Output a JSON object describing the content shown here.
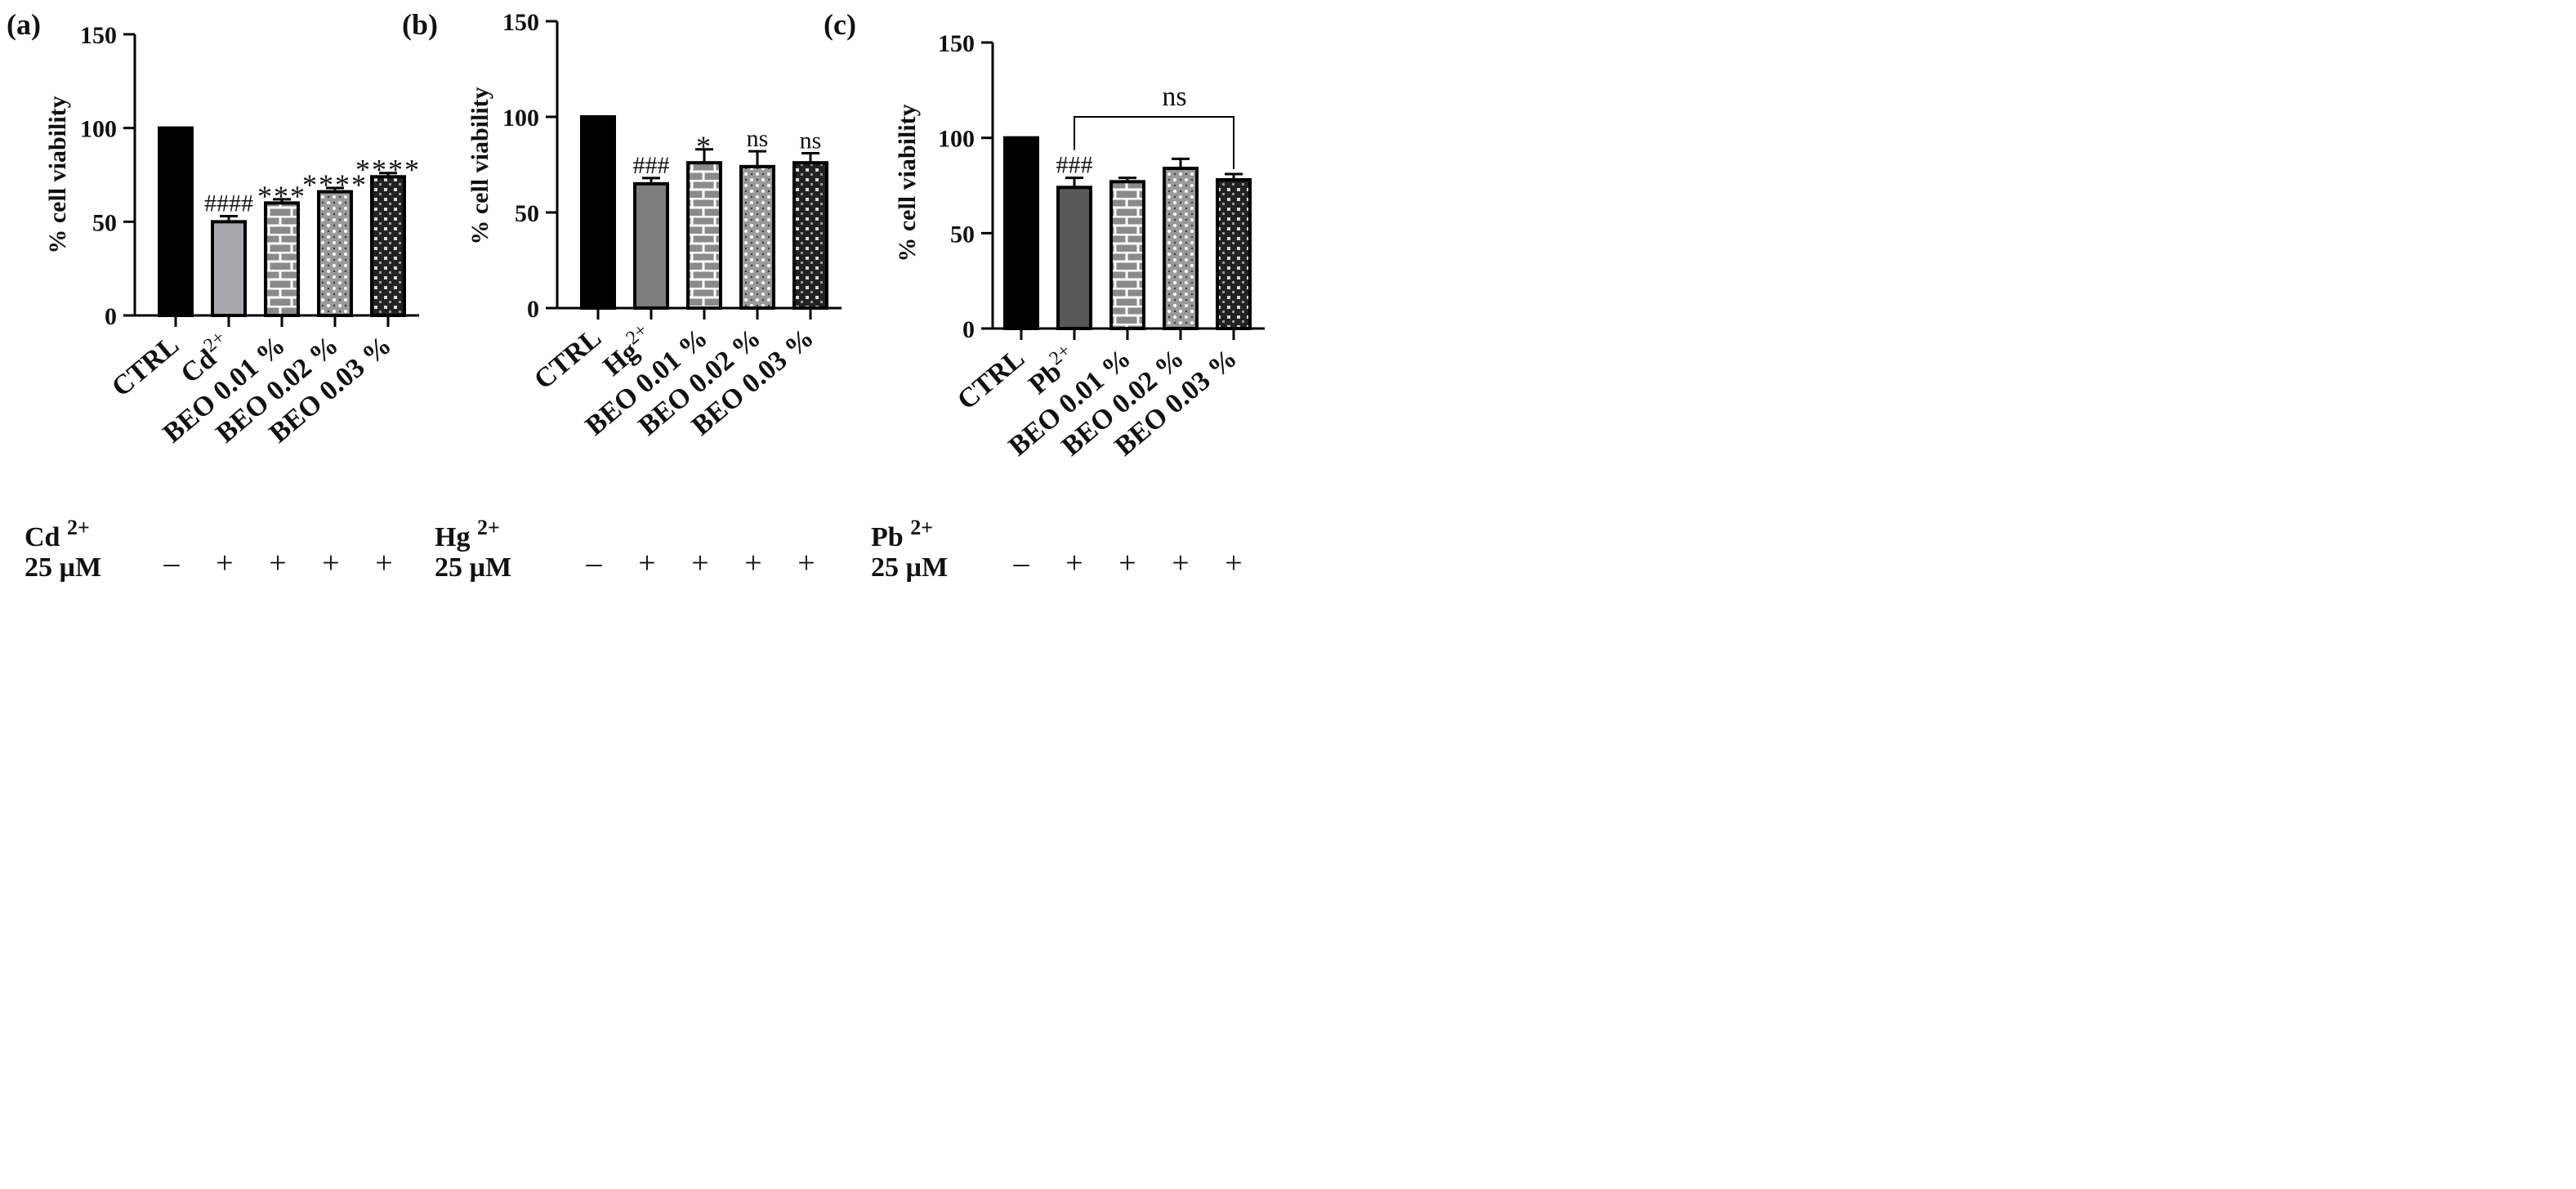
{
  "figure": {
    "panels": [
      {
        "label": "(a)",
        "ion": "Cd",
        "ion_charge": "2+",
        "row_title_ion": "Cd",
        "row_title_charge": "2+",
        "row_title_conc": "25 µM",
        "treatment_signs": [
          "–",
          "+",
          "+",
          "+",
          "+"
        ],
        "annotations": [
          "",
          "####",
          "***",
          "****",
          "****"
        ],
        "ns_bracket": null
      },
      {
        "label": "(b)",
        "ion": "Hg",
        "ion_charge": "2+",
        "row_title_ion": "Hg",
        "row_title_charge": "2+",
        "row_title_conc": "25 µM",
        "treatment_signs": [
          "–",
          "+",
          "+",
          "+",
          "+"
        ],
        "annotations": [
          "",
          "###",
          "*",
          "ns",
          "ns"
        ],
        "ns_bracket": null
      },
      {
        "label": "(c)",
        "ion": "Pb",
        "ion_charge": "2+",
        "row_title_ion": "Pb",
        "row_title_charge": "2+",
        "row_title_conc": "25 µM",
        "treatment_signs": [
          "–",
          "+",
          "+",
          "+",
          "+"
        ],
        "annotations": [
          "",
          "###",
          "",
          "",
          ""
        ],
        "ns_bracket": {
          "label": "ns",
          "from_index": 1,
          "to_index": 4
        }
      }
    ]
  },
  "chart_data": [
    {
      "type": "bar",
      "title": "",
      "xlabel": "",
      "ylabel": "% cell viability",
      "ylim": [
        0,
        150
      ],
      "yticks": [
        0,
        50,
        100,
        150
      ],
      "categories": [
        "CTRL",
        "Cd2+",
        "BEO 0.01 %",
        "BEO 0.02 %",
        "BEO 0.03 %"
      ],
      "values": [
        100,
        50,
        60,
        66,
        74
      ],
      "errors": [
        0,
        3,
        2,
        2,
        2
      ],
      "fills": [
        "#000000",
        "#a7a7ad",
        "pattern-brick",
        "pattern-dots",
        "pattern-grid"
      ]
    },
    {
      "type": "bar",
      "title": "",
      "xlabel": "",
      "ylabel": "% cell viability",
      "ylim": [
        0,
        150
      ],
      "yticks": [
        0,
        50,
        100,
        150
      ],
      "categories": [
        "CTRL",
        "Hg2+",
        "BEO 0.01 %",
        "BEO 0.02 %",
        "BEO 0.03 %"
      ],
      "values": [
        100,
        65,
        76,
        74,
        76
      ],
      "errors": [
        0,
        3,
        7,
        8,
        5
      ],
      "fills": [
        "#000000",
        "#7d7d7d",
        "pattern-brick",
        "pattern-dots",
        "pattern-grid"
      ]
    },
    {
      "type": "bar",
      "title": "",
      "xlabel": "",
      "ylabel": "%  cell viability",
      "ylim": [
        0,
        150
      ],
      "yticks": [
        0,
        50,
        100,
        150
      ],
      "categories": [
        "CTRL",
        "Pb2+",
        "BEO 0.01 %",
        "BEO 0.02 %",
        "BEO 0.03 %"
      ],
      "values": [
        100,
        74,
        77,
        84,
        78
      ],
      "errors": [
        0,
        5,
        2,
        5,
        3
      ],
      "fills": [
        "#000000",
        "#585858",
        "pattern-brick",
        "pattern-dots",
        "pattern-grid"
      ]
    }
  ]
}
